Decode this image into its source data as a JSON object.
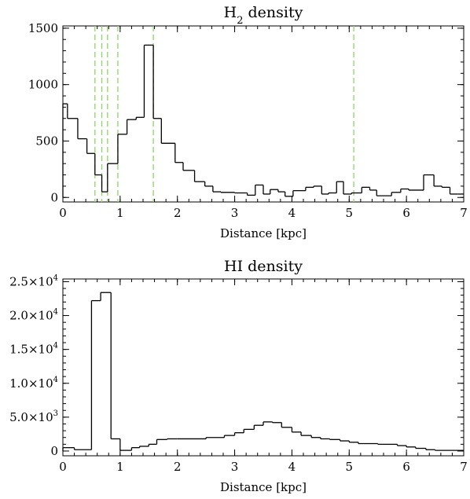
{
  "chart_data": [
    {
      "type": "histogram",
      "title": "H",
      "title_subscript": "2",
      "title_rest": " density",
      "xlabel": "Distance [kpc]",
      "ylabel": "",
      "xlim": [
        0,
        7
      ],
      "ylim": [
        -40,
        1520
      ],
      "xticks": [
        0,
        1,
        2,
        3,
        4,
        5,
        6,
        7
      ],
      "xtick_labels": [
        "0",
        "1",
        "2",
        "3",
        "4",
        "5",
        "6",
        "7"
      ],
      "yticks": [
        0,
        500,
        1000,
        1500
      ],
      "ytick_labels": [
        "0",
        "500",
        "1000",
        "1500"
      ],
      "grid": false,
      "bin_edges": [
        0,
        0.08,
        0.26,
        0.42,
        0.56,
        0.68,
        0.78,
        0.96,
        1.12,
        1.28,
        1.42,
        1.58,
        1.72,
        1.96,
        2.1,
        2.3,
        2.48,
        2.62,
        2.76,
        3.0,
        3.22,
        3.36,
        3.5,
        3.62,
        3.76,
        3.88,
        4.02,
        4.24,
        4.38,
        4.52,
        4.64,
        4.78,
        4.9,
        5.04,
        5.22,
        5.36,
        5.48,
        5.74,
        5.9,
        6.04,
        6.3,
        6.48,
        6.62,
        6.76,
        6.9,
        7.0
      ],
      "values": [
        830,
        700,
        520,
        390,
        200,
        50,
        300,
        560,
        690,
        710,
        1350,
        700,
        480,
        310,
        240,
        140,
        100,
        50,
        45,
        40,
        20,
        110,
        30,
        70,
        50,
        10,
        60,
        90,
        100,
        30,
        40,
        140,
        30,
        40,
        90,
        65,
        15,
        45,
        75,
        65,
        200,
        100,
        90,
        30,
        30
      ],
      "reference_lines": [
        0.56,
        0.68,
        0.78,
        0.96,
        1.58,
        5.08
      ],
      "line_color": "#000000",
      "reference_line_color": "#8fd468"
    },
    {
      "type": "histogram",
      "title": "HI density",
      "xlabel": "Distance [kpc]",
      "ylabel": "",
      "xlim": [
        0,
        7
      ],
      "ylim": [
        -700,
        25400
      ],
      "xticks": [
        0,
        1,
        2,
        3,
        4,
        5,
        6,
        7
      ],
      "xtick_labels": [
        "0",
        "1",
        "2",
        "3",
        "4",
        "5",
        "6",
        "7"
      ],
      "yticks": [
        0,
        5000,
        10000,
        15000,
        20000,
        25000
      ],
      "ytick_labels": [
        {
          "mant": "0",
          "exp": ""
        },
        {
          "mant": "5.0×10",
          "exp": "3"
        },
        {
          "mant": "1.0×10",
          "exp": "4"
        },
        {
          "mant": "1.5×10",
          "exp": "4"
        },
        {
          "mant": "2.0×10",
          "exp": "4"
        },
        {
          "mant": "2.5×10",
          "exp": "4"
        }
      ],
      "grid": false,
      "bin_edges": [
        0,
        0.2,
        0.5,
        0.66,
        0.84,
        1.0,
        1.2,
        1.34,
        1.5,
        1.64,
        1.82,
        2.0,
        2.5,
        2.82,
        3.0,
        3.16,
        3.34,
        3.5,
        3.66,
        3.82,
        4.0,
        4.16,
        4.34,
        4.5,
        4.66,
        4.84,
        5.0,
        5.16,
        5.5,
        5.84,
        6.0,
        6.16,
        6.34,
        6.5,
        7.0
      ],
      "values": [
        500,
        200,
        22200,
        23400,
        1800,
        100,
        500,
        700,
        1000,
        1700,
        1800,
        1800,
        2000,
        2300,
        2700,
        3200,
        3800,
        4300,
        4200,
        3500,
        2800,
        2300,
        2000,
        1800,
        1700,
        1500,
        1300,
        1100,
        1000,
        800,
        600,
        400,
        200,
        100
      ],
      "line_color": "#000000"
    }
  ]
}
